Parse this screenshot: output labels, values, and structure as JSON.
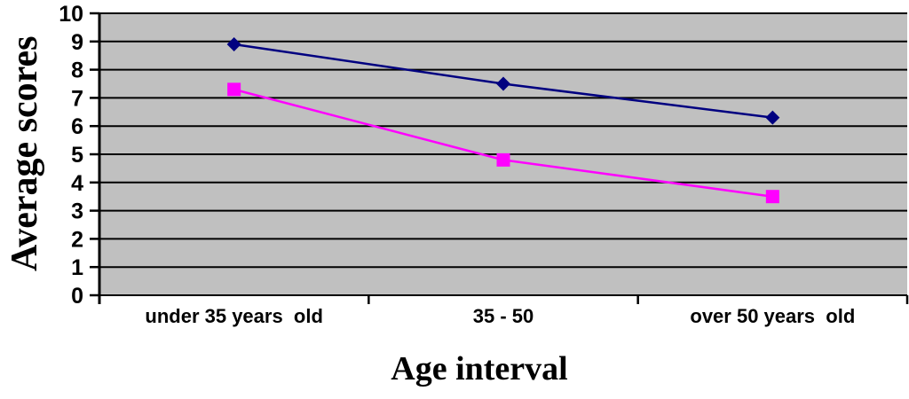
{
  "chart_data": {
    "type": "line",
    "title": "",
    "categories": [
      "under 35 years  old",
      "35 - 50",
      "over 50 years  old"
    ],
    "series": [
      {
        "marker": "diamond",
        "color": "#000080",
        "values": [
          8.9,
          7.5,
          6.3
        ]
      },
      {
        "marker": "square",
        "color": "#ff00ff",
        "values": [
          7.3,
          4.8,
          3.5
        ]
      }
    ],
    "xlabel": "Age interval",
    "ylabel": "Average scores",
    "ylim": [
      0,
      10
    ],
    "yticks": [
      0,
      1,
      2,
      3,
      4,
      5,
      6,
      7,
      8,
      9,
      10
    ],
    "grid": "horizontal",
    "legend": "none",
    "colors": {
      "plot_background": "#c0c0c0",
      "gridline": "#000000",
      "axis": "#000000",
      "page_background": "#ffffff"
    }
  }
}
